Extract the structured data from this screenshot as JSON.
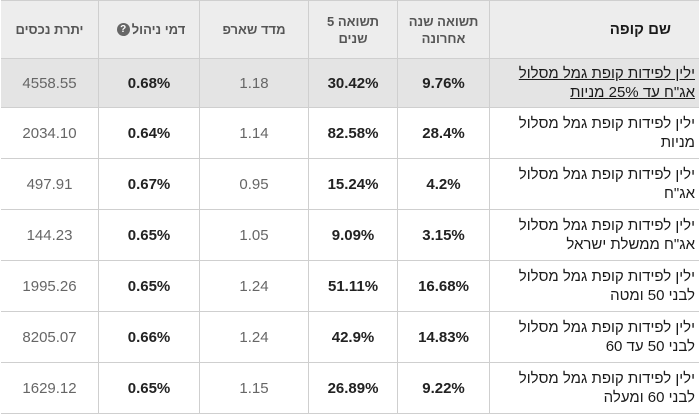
{
  "headers": {
    "fund_name": "שם קופה",
    "return_last_year": "תשואה שנה אחרונה",
    "return_5_years": "תשואה 5 שנים",
    "sharpe": "מדד שארפ",
    "mgmt_fee": "דמי ניהול",
    "assets": "יתרת נכסים"
  },
  "rows": [
    {
      "name": "ילין לפידות קופת גמל מסלול אג\"ח עד 25% מניות",
      "return_last_year": "9.76%",
      "return_5_years": "30.42%",
      "sharpe": "1.18",
      "mgmt_fee": "0.68%",
      "assets": "4558.55"
    },
    {
      "name": "ילין לפידות קופת גמל מסלול מניות",
      "return_last_year": "28.4%",
      "return_5_years": "82.58%",
      "sharpe": "1.14",
      "mgmt_fee": "0.64%",
      "assets": "2034.10"
    },
    {
      "name": "ילין לפידות קופת גמל מסלול אג\"ח",
      "return_last_year": "4.2%",
      "return_5_years": "15.24%",
      "sharpe": "0.95",
      "mgmt_fee": "0.67%",
      "assets": "497.91"
    },
    {
      "name": "ילין לפידות קופת גמל מסלול אג\"ח ממשלת ישראל",
      "return_last_year": "3.15%",
      "return_5_years": "9.09%",
      "sharpe": "1.05",
      "mgmt_fee": "0.65%",
      "assets": "144.23"
    },
    {
      "name": "ילין לפידות קופת גמל מסלול לבני 50 ומטה",
      "return_last_year": "16.68%",
      "return_5_years": "51.11%",
      "sharpe": "1.24",
      "mgmt_fee": "0.65%",
      "assets": "1995.26"
    },
    {
      "name": "ילין לפידות קופת גמל מסלול לבני 50 עד 60",
      "return_last_year": "14.83%",
      "return_5_years": "42.9%",
      "sharpe": "1.24",
      "mgmt_fee": "0.66%",
      "assets": "8205.07"
    },
    {
      "name": "ילין לפידות קופת גמל מסלול לבני 60 ומעלה",
      "return_last_year": "9.22%",
      "return_5_years": "26.89%",
      "sharpe": "1.15",
      "mgmt_fee": "0.65%",
      "assets": "1629.12"
    }
  ]
}
